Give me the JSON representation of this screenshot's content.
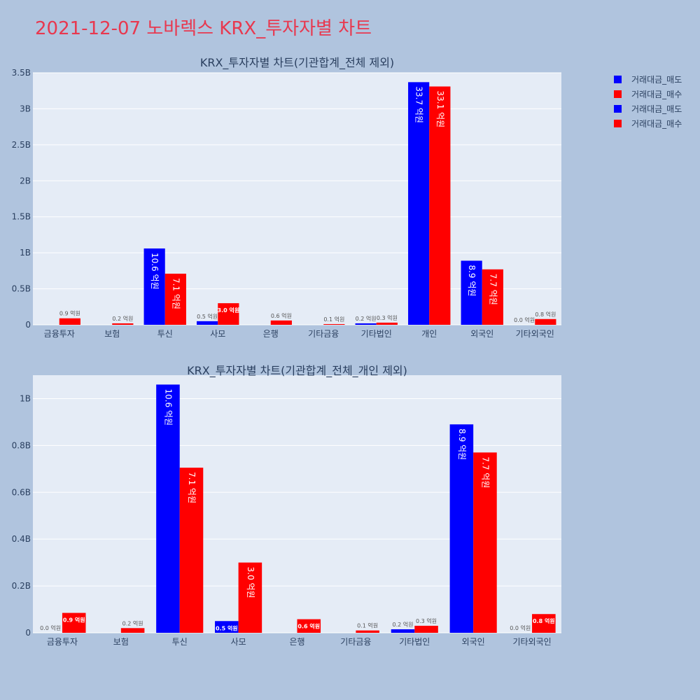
{
  "page_title": "2021-12-07 노바렉스 KRX_투자자별 차트",
  "legend": [
    {
      "label": "거래대금_매도",
      "color": "#0000ff"
    },
    {
      "label": "거래대금_매수",
      "color": "#ff0000"
    },
    {
      "label": "거래대금_매도",
      "color": "#0000ff"
    },
    {
      "label": "거래대금_매수",
      "color": "#ff0000"
    }
  ],
  "chart_data": [
    {
      "type": "bar",
      "title": "KRX_투자자별 차트(기관합계_전체 제외)",
      "categories": [
        "금융투자",
        "보험",
        "투신",
        "사모",
        "은행",
        "기타금융",
        "기타법인",
        "개인",
        "외국인",
        "기타외국인"
      ],
      "ylim": [
        0,
        3.5
      ],
      "yticks": [
        0,
        0.5,
        1,
        1.5,
        2,
        2.5,
        3,
        3.5
      ],
      "ytick_labels": [
        "0",
        "0.5B",
        "1B",
        "1.5B",
        "2B",
        "2.5B",
        "3B",
        "3.5B"
      ],
      "series": [
        {
          "name": "거래대금_매도",
          "color": "#0000ff",
          "values": [
            0.0,
            0.0,
            1.06,
            0.05,
            0.0,
            0.0,
            0.02,
            3.37,
            0.89,
            0.0
          ],
          "labels": [
            "",
            "",
            "10.6 억원",
            "0.5 억원",
            "",
            "",
            "0.2 억원",
            "33.7 억원",
            "8.9 억원",
            "0.0 억원"
          ]
        },
        {
          "name": "거래대금_매수",
          "color": "#ff0000",
          "values": [
            0.09,
            0.02,
            0.71,
            0.3,
            0.06,
            0.01,
            0.03,
            3.31,
            0.77,
            0.08
          ],
          "labels": [
            "0.9 억원",
            "0.2 억원",
            "7.1 억원",
            "3.0 억원",
            "0.6 억원",
            "0.1 억원",
            "0.3 억원",
            "33.1 억원",
            "7.7 억원",
            "0.8 억원"
          ]
        }
      ]
    },
    {
      "type": "bar",
      "title": "KRX_투자자별 차트(기관합계_전체_개인 제외)",
      "categories": [
        "금융투자",
        "보험",
        "투신",
        "사모",
        "은행",
        "기타금융",
        "기타법인",
        "외국인",
        "기타외국인"
      ],
      "ylim": [
        0,
        1.1
      ],
      "yticks": [
        0,
        0.2,
        0.4,
        0.6,
        0.8,
        1.0
      ],
      "ytick_labels": [
        "0",
        "0.2B",
        "0.4B",
        "0.6B",
        "0.8B",
        "1B"
      ],
      "series": [
        {
          "name": "거래대금_매도",
          "color": "#0000ff",
          "values": [
            0.0,
            0.0,
            1.06,
            0.05,
            0.0,
            0.0,
            0.015,
            0.89,
            0.0
          ],
          "labels": [
            "0.0 억원",
            "",
            "10.6 억원",
            "0.5 억원",
            "",
            "",
            "0.2 억원",
            "8.9 억원",
            "0.0 억원"
          ]
        },
        {
          "name": "거래대금_매수",
          "color": "#ff0000",
          "values": [
            0.085,
            0.02,
            0.705,
            0.3,
            0.058,
            0.01,
            0.03,
            0.77,
            0.08
          ],
          "labels": [
            "0.9 억원",
            "0.2 억원",
            "7.1 억원",
            "3.0 억원",
            "0.6 억원",
            "0.1 억원",
            "0.3 억원",
            "7.7 억원",
            "0.8 억원"
          ]
        }
      ]
    }
  ]
}
